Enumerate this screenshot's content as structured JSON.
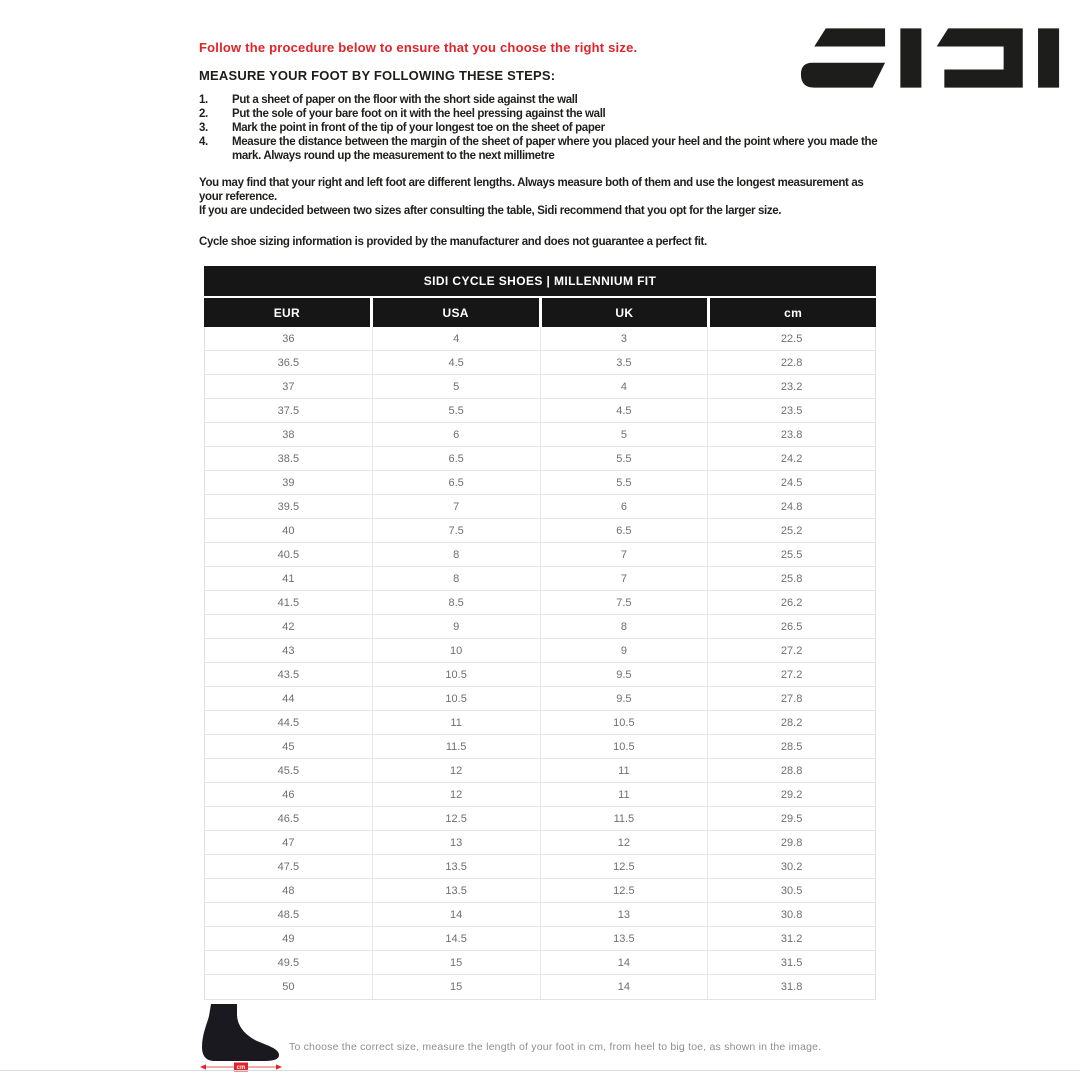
{
  "colors": {
    "accent_red": "#e1232a",
    "ink": "#1d1d1b",
    "table_header_bg": "#161616"
  },
  "logo": {
    "brand": "SIDI"
  },
  "intro": {
    "warning": "Follow the procedure below to ensure that you choose the right size.",
    "steps_heading": "MEASURE YOUR FOOT BY FOLLOWING THESE STEPS:",
    "steps": [
      {
        "num": "1.",
        "text": "Put a sheet of paper on the floor with the short side against the wall"
      },
      {
        "num": "2.",
        "text": "Put the sole of your bare foot on it with the heel pressing against the wall"
      },
      {
        "num": "3.",
        "text": "Mark the point in front of the tip of your longest toe on the sheet of paper"
      },
      {
        "num": "4.",
        "text": "Measure the distance between the margin of the sheet of paper where you placed your heel and the point where you made the mark. Always round up the measurement to the next millimetre"
      }
    ],
    "note1": "You may find that your right and left foot are different lengths. Always measure both of them and use the longest measurement as your reference.",
    "note2": "If you are undecided between two sizes after consulting the table, Sidi recommend that you opt for the larger size.",
    "note3": "Cycle shoe sizing information is provided by the manufacturer and does not guarantee a perfect fit."
  },
  "table": {
    "title": "SIDI CYCLE SHOES | MILLENNIUM FIT",
    "columns": [
      "EUR",
      "USA",
      "UK",
      "cm"
    ],
    "rows": [
      [
        "36",
        "4",
        "3",
        "22.5"
      ],
      [
        "36.5",
        "4.5",
        "3.5",
        "22.8"
      ],
      [
        "37",
        "5",
        "4",
        "23.2"
      ],
      [
        "37.5",
        "5.5",
        "4.5",
        "23.5"
      ],
      [
        "38",
        "6",
        "5",
        "23.8"
      ],
      [
        "38.5",
        "6.5",
        "5.5",
        "24.2"
      ],
      [
        "39",
        "6.5",
        "5.5",
        "24.5"
      ],
      [
        "39.5",
        "7",
        "6",
        "24.8"
      ],
      [
        "40",
        "7.5",
        "6.5",
        "25.2"
      ],
      [
        "40.5",
        "8",
        "7",
        "25.5"
      ],
      [
        "41",
        "8",
        "7",
        "25.8"
      ],
      [
        "41.5",
        "8.5",
        "7.5",
        "26.2"
      ],
      [
        "42",
        "9",
        "8",
        "26.5"
      ],
      [
        "43",
        "10",
        "9",
        "27.2"
      ],
      [
        "43.5",
        "10.5",
        "9.5",
        "27.2"
      ],
      [
        "44",
        "10.5",
        "9.5",
        "27.8"
      ],
      [
        "44.5",
        "11",
        "10.5",
        "28.2"
      ],
      [
        "45",
        "11.5",
        "10.5",
        "28.5"
      ],
      [
        "45.5",
        "12",
        "11",
        "28.8"
      ],
      [
        "46",
        "12",
        "11",
        "29.2"
      ],
      [
        "46.5",
        "12.5",
        "11.5",
        "29.5"
      ],
      [
        "47",
        "13",
        "12",
        "29.8"
      ],
      [
        "47.5",
        "13.5",
        "12.5",
        "30.2"
      ],
      [
        "48",
        "13.5",
        "12.5",
        "30.5"
      ],
      [
        "48.5",
        "14",
        "13",
        "30.8"
      ],
      [
        "49",
        "14.5",
        "13.5",
        "31.2"
      ],
      [
        "49.5",
        "15",
        "14",
        "31.5"
      ],
      [
        "50",
        "15",
        "14",
        "31.8"
      ]
    ]
  },
  "footer": {
    "dim_label": "cm",
    "caption": "To choose the correct size, measure the length of your foot in cm, from heel to big toe, as shown in the image."
  }
}
